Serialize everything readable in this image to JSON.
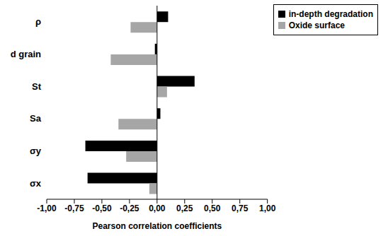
{
  "chart_data": {
    "type": "bar",
    "orientation": "horizontal",
    "x_label": "Pearson correlation coefficients",
    "categories": [
      "ρ",
      "d grain",
      "St",
      "Sa",
      "σy",
      "σx"
    ],
    "series": [
      {
        "name": "in-depth degradation",
        "color": "#000000",
        "values": [
          0.1,
          -0.02,
          0.34,
          0.03,
          -0.65,
          -0.63
        ]
      },
      {
        "name": "Oxide surface",
        "color": "#a6a6a6",
        "values": [
          -0.24,
          -0.42,
          0.09,
          -0.35,
          -0.28,
          -0.07
        ]
      }
    ],
    "xlim": [
      -1,
      1
    ],
    "xticks": [
      {
        "value": -1,
        "label": "-1,00"
      },
      {
        "value": -0.75,
        "label": "-0,75"
      },
      {
        "value": -0.5,
        "label": "-0,50"
      },
      {
        "value": -0.25,
        "label": "-0,25"
      },
      {
        "value": 0,
        "label": "0,00"
      },
      {
        "value": 0.25,
        "label": "0,25"
      },
      {
        "value": 0.5,
        "label": "0,50"
      },
      {
        "value": 0.75,
        "label": "0,75"
      },
      {
        "value": 1,
        "label": "1,00"
      }
    ],
    "grid": false,
    "legend": "top-right"
  }
}
